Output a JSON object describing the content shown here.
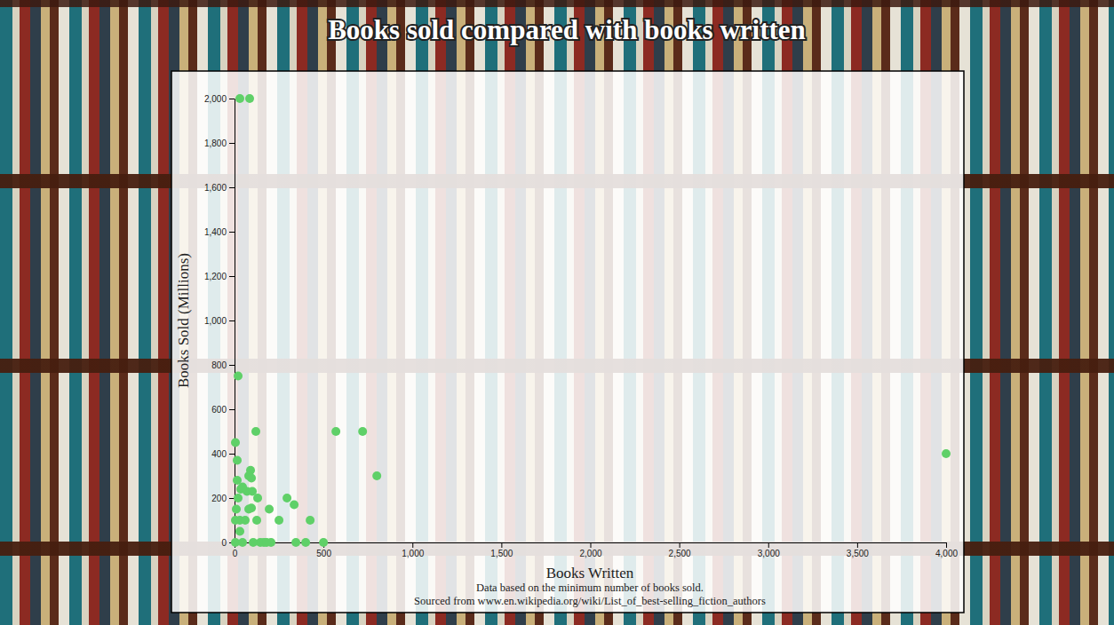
{
  "chart_data": {
    "type": "scatter",
    "title": "Books sold compared with books written",
    "x_label": "Books Written",
    "y_label": "Books Sold (Millions)",
    "annotations": [
      "Data based on the minimum number of books sold.",
      "Sourced from www.en.wikipedia.org/wiki/List_of_best-selling_fiction_authors"
    ],
    "color": "#5fd068",
    "marker": "circle",
    "grid": false,
    "x": [
      30,
      85,
      20,
      120,
      570,
      720,
      800,
      4000,
      5,
      15,
      295,
      335,
      425,
      250,
      195,
      345,
      400,
      500,
      205,
      145,
      105,
      165,
      180,
      90,
      80,
      95,
      130,
      95,
      125,
      35,
      70,
      20,
      5,
      30,
      5,
      45,
      30,
      60,
      80,
      10,
      100,
      45,
      15
    ],
    "values": [
      2000,
      2000,
      750,
      500,
      500,
      500,
      300,
      400,
      450,
      370,
      200,
      170,
      100,
      100,
      150,
      0,
      0,
      0,
      0,
      0,
      0,
      0,
      0,
      325,
      300,
      290,
      200,
      155,
      100,
      240,
      230,
      200,
      100,
      50,
      0,
      0,
      100,
      100,
      150,
      150,
      230,
      250,
      280
    ],
    "xlim": [
      0,
      4000
    ],
    "ylim": [
      0,
      2000
    ],
    "xticks": [
      0,
      500,
      {
        "value": 1000,
        "label": "1,000"
      },
      {
        "value": 1500,
        "label": "1,500"
      },
      {
        "value": 2000,
        "label": "2,000"
      },
      {
        "value": 2500,
        "label": "2,500"
      },
      {
        "value": 3000,
        "label": "3,000"
      },
      {
        "value": 3500,
        "label": "3,500"
      },
      {
        "value": 4000,
        "label": "4,000"
      }
    ],
    "yticks": [
      0,
      200,
      400,
      600,
      800,
      {
        "value": 1000,
        "label": "1,000"
      },
      {
        "value": 1200,
        "label": "1,200"
      },
      {
        "value": 1400,
        "label": "1,400"
      },
      {
        "value": 1600,
        "label": "1,600"
      },
      {
        "value": 1800,
        "label": "1,800"
      },
      {
        "value": 2000,
        "label": "2,000"
      }
    ]
  }
}
